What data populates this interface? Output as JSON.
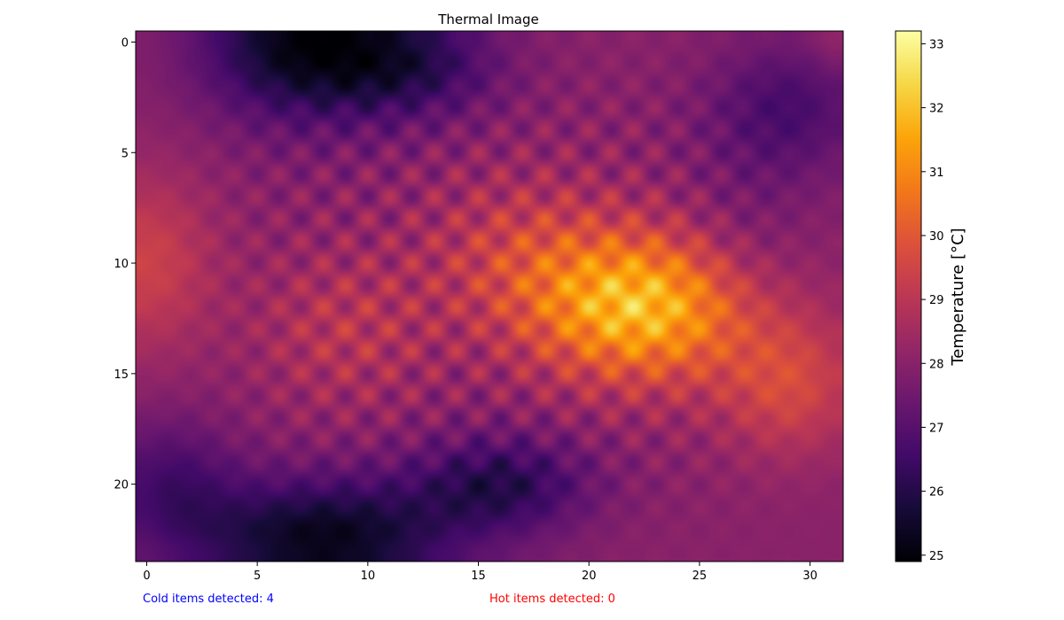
{
  "chart_data": {
    "type": "heatmap",
    "title": "Thermal Image",
    "grid_size": [
      24,
      32
    ],
    "x_ticks": [
      "0",
      "5",
      "10",
      "15",
      "20",
      "25",
      "30"
    ],
    "y_ticks": [
      "0",
      "5",
      "10",
      "15",
      "20"
    ],
    "xlim": [
      -0.5,
      31.5
    ],
    "ylim": [
      23.5,
      -0.5
    ],
    "colormap": "inferno",
    "colorbar": {
      "label": "Temperature [°C]",
      "range": [
        24.9,
        33.2
      ],
      "ticks": [
        "25",
        "26",
        "27",
        "28",
        "29",
        "30",
        "31",
        "32",
        "33"
      ]
    },
    "hot_spot": {
      "x": 22.5,
      "y": 12,
      "value": 33.2
    },
    "cold_spots": [
      {
        "x": 6,
        "y": 0,
        "value": 24.9
      },
      {
        "x": 6,
        "y": 23,
        "value": 25.0
      }
    ],
    "grid": false
  },
  "status": {
    "cold": "Cold items detected: 4",
    "hot": "Hot items detected: 0",
    "cold_color": "#0000ff",
    "hot_color": "#ff0000"
  }
}
